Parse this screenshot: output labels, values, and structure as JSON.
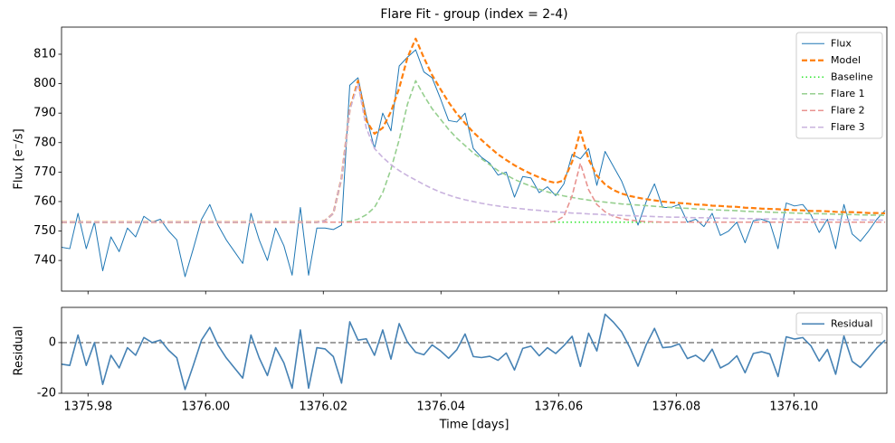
{
  "chart_data": [
    {
      "type": "line",
      "title": "Flare Fit - group (index = 2-4)",
      "y_label": "Flux [e⁻/s]",
      "xlim": [
        1375.9755,
        1376.1158
      ],
      "ylim": [
        729.6,
        819.2
      ],
      "yticks": [
        740,
        750,
        760,
        770,
        780,
        790,
        800,
        810
      ],
      "legend": "upper right",
      "x": [
        1375.9755,
        1375.9769,
        1375.9783,
        1375.9797,
        1375.9811,
        1375.9825,
        1375.9839,
        1375.9853,
        1375.9867,
        1375.9881,
        1375.9895,
        1375.9909,
        1375.9923,
        1375.9937,
        1375.9951,
        1375.9965,
        1375.9979,
        1375.9993,
        1376.0007,
        1376.0021,
        1376.0035,
        1376.0049,
        1376.0063,
        1376.0077,
        1376.0091,
        1376.0105,
        1376.0119,
        1376.0133,
        1376.0147,
        1376.0161,
        1376.0175,
        1376.0189,
        1376.0203,
        1376.0217,
        1376.0231,
        1376.0245,
        1376.0259,
        1376.0273,
        1376.0287,
        1376.0301,
        1376.0315,
        1376.0329,
        1376.0343,
        1376.0357,
        1376.0371,
        1376.0385,
        1376.0399,
        1376.0413,
        1376.0427,
        1376.0441,
        1376.0455,
        1376.0469,
        1376.0483,
        1376.0497,
        1376.0511,
        1376.0525,
        1376.0539,
        1376.0553,
        1376.0567,
        1376.0581,
        1376.0595,
        1376.0609,
        1376.0623,
        1376.0637,
        1376.0651,
        1376.0665,
        1376.0679,
        1376.0693,
        1376.0707,
        1376.0721,
        1376.0735,
        1376.0749,
        1376.0763,
        1376.0777,
        1376.0791,
        1376.0805,
        1376.0819,
        1376.0833,
        1376.0847,
        1376.0861,
        1376.0875,
        1376.0889,
        1376.0903,
        1376.0917,
        1376.0931,
        1376.0945,
        1376.0959,
        1376.0973,
        1376.0987,
        1376.1001,
        1376.1015,
        1376.1029,
        1376.1043,
        1376.1057,
        1376.1071,
        1376.1085,
        1376.1099,
        1376.1113,
        1376.1127,
        1376.1141,
        1376.1155
      ],
      "series": [
        {
          "name": "Flux",
          "color": "#1f77b4",
          "dash": "solid",
          "width": 1,
          "values": [
            744.5,
            744,
            756,
            744,
            753,
            736.5,
            748,
            743,
            751,
            748,
            755,
            753,
            754,
            750,
            747,
            734.5,
            744,
            754,
            759,
            752,
            747,
            743,
            739,
            756,
            747,
            740,
            751,
            745,
            735,
            758,
            735,
            751,
            751,
            750.5,
            752,
            799.5,
            802,
            789,
            778,
            790,
            784,
            806,
            809,
            811.5,
            804,
            802,
            795,
            787.5,
            787,
            790,
            778,
            775,
            773,
            769,
            770,
            761.5,
            768.5,
            768,
            763,
            765,
            762,
            766,
            776,
            774.5,
            778,
            765.5,
            777,
            772,
            767,
            760,
            752,
            760,
            766,
            758,
            758,
            759,
            753,
            754,
            751.5,
            756,
            748.5,
            750,
            753,
            746,
            753.5,
            754,
            753,
            744,
            759.5,
            758.5,
            759,
            755.5,
            749.5,
            754,
            744,
            759,
            749,
            746.5,
            750,
            754,
            757
          ]
        },
        {
          "name": "Model",
          "color": "#ff7f0e",
          "dash": "dashed",
          "width": 2.2,
          "values": [
            753,
            753,
            753,
            753,
            753,
            753,
            753,
            753,
            753,
            753,
            753,
            753,
            753,
            753,
            753,
            753,
            753,
            753,
            753,
            753,
            753,
            753,
            753,
            753,
            753,
            753,
            753,
            753,
            753,
            753,
            753,
            753,
            753.5,
            756,
            768,
            791.3,
            801,
            787.5,
            783,
            785,
            790.5,
            798.5,
            808.8,
            815.3,
            808.8,
            802.9,
            798.2,
            793.7,
            789.8,
            786.6,
            783.5,
            780.9,
            778.4,
            776,
            774.1,
            772.3,
            770.8,
            769.4,
            768.2,
            767,
            766.3,
            767.2,
            773.5,
            783.9,
            774.3,
            768.8,
            765.8,
            763.9,
            762.7,
            761.9,
            761.3,
            760.8,
            760.4,
            760,
            759.7,
            759.5,
            759.3,
            759,
            758.9,
            758.6,
            758.5,
            758.3,
            758.2,
            757.9,
            757.8,
            757.6,
            757.5,
            757.4,
            757.2,
            757.1,
            757,
            756.8,
            756.8,
            756.7,
            756.5,
            756.4,
            756.4,
            756.3,
            756.1,
            756.1,
            756
          ]
        },
        {
          "name": "Baseline",
          "color": "#2ee52e",
          "dash": "dotted",
          "width": 1.6,
          "x": [
            1375.9755,
            1376.1155
          ],
          "values": [
            753,
            753
          ]
        },
        {
          "name": "Flare 1",
          "color": "#96cf8f",
          "dash": "dashed",
          "width": 1.6,
          "values": [
            753,
            753,
            753,
            753,
            753,
            753,
            753,
            753,
            753,
            753,
            753,
            753,
            753,
            753,
            753,
            753,
            753,
            753,
            753,
            753,
            753,
            753,
            753,
            753,
            753,
            753,
            753,
            753,
            753,
            753,
            753,
            753,
            753,
            753,
            753,
            753.3,
            754,
            755.5,
            758,
            763,
            771,
            781,
            793,
            801,
            796,
            791.5,
            788,
            784.5,
            781.5,
            779,
            776.5,
            774.5,
            772.5,
            770.5,
            769,
            767.5,
            766.3,
            765.2,
            764.2,
            763.3,
            762.5,
            761.9,
            761.4,
            760.9,
            760.5,
            760.1,
            759.8,
            759.5,
            759.2,
            759,
            758.8,
            758.6,
            758.4,
            758.2,
            758,
            757.8,
            757.7,
            757.5,
            757.4,
            757.2,
            757.1,
            757,
            756.9,
            756.7,
            756.6,
            756.5,
            756.4,
            756.3,
            756.2,
            756.1,
            756,
            755.9,
            755.9,
            755.8,
            755.7,
            755.6,
            755.6,
            755.5,
            755.4,
            755.4,
            755.3
          ]
        },
        {
          "name": "Flare 2",
          "color": "#e89390",
          "dash": "dashed",
          "width": 1.6,
          "x": [
            1375.9755,
            1376.0581,
            1376.0595,
            1376.0609,
            1376.0623,
            1376.0637,
            1376.0651,
            1376.0665,
            1376.0679,
            1376.0693,
            1376.0707,
            1376.0721,
            1376.0735,
            1376.0749,
            1376.0763,
            1376.0777,
            1376.1155
          ],
          "values": [
            753,
            753,
            753.3,
            755,
            762,
            773,
            764,
            759,
            756.5,
            755,
            754.2,
            753.7,
            753.4,
            753.2,
            753.1,
            753,
            753
          ]
        },
        {
          "name": "Flare 3",
          "color": "#c9b3de",
          "dash": "dashed",
          "width": 1.6,
          "values": [
            753,
            753,
            753,
            753,
            753,
            753,
            753,
            753,
            753,
            753,
            753,
            753,
            753,
            753,
            753,
            753,
            753,
            753,
            753,
            753,
            753,
            753,
            753,
            753,
            753,
            753,
            753,
            753,
            753,
            753,
            753,
            753,
            753.5,
            756,
            768,
            791,
            800,
            785,
            778,
            775,
            772.5,
            770.5,
            768.8,
            767.3,
            765.8,
            764.4,
            763.2,
            762.2,
            761.3,
            760.6,
            760,
            759.4,
            758.9,
            758.5,
            758.1,
            757.8,
            757.5,
            757.2,
            757,
            756.7,
            756.5,
            756.3,
            756.1,
            756,
            755.8,
            755.7,
            755.5,
            755.4,
            755.3,
            755.2,
            755.1,
            755,
            754.9,
            754.8,
            754.7,
            754.7,
            754.6,
            754.5,
            754.5,
            754.4,
            754.4,
            754.3,
            754.3,
            754.2,
            754.2,
            754.1,
            754.1,
            754.1,
            754,
            754,
            754,
            753.9,
            753.9,
            753.9,
            753.8,
            753.8,
            753.8,
            753.8,
            753.7,
            753.7,
            753.7
          ]
        }
      ]
    },
    {
      "type": "line",
      "x_label": "Time [days]",
      "y_label": "Residual",
      "xlim": [
        1375.9755,
        1376.1158
      ],
      "ylim": [
        -20,
        13.9
      ],
      "yticks": [
        -20,
        0
      ],
      "legend": "upper right",
      "xticks": [
        1375.98,
        {
          "value": 1376,
          "label": "1376.00"
        },
        1376.02,
        1376.04,
        1376.06,
        1376.08,
        {
          "value": 1376.1,
          "label": "1376.10"
        }
      ],
      "hlines": [
        {
          "y": 0,
          "color": "#808080"
        }
      ],
      "x": [
        1375.9755,
        1375.9769,
        1375.9783,
        1375.9797,
        1375.9811,
        1375.9825,
        1375.9839,
        1375.9853,
        1375.9867,
        1375.9881,
        1375.9895,
        1375.9909,
        1375.9923,
        1375.9937,
        1375.9951,
        1375.9965,
        1375.9979,
        1375.9993,
        1376.0007,
        1376.0021,
        1376.0035,
        1376.0049,
        1376.0063,
        1376.0077,
        1376.0091,
        1376.0105,
        1376.0119,
        1376.0133,
        1376.0147,
        1376.0161,
        1376.0175,
        1376.0189,
        1376.0203,
        1376.0217,
        1376.0231,
        1376.0245,
        1376.0259,
        1376.0273,
        1376.0287,
        1376.0301,
        1376.0315,
        1376.0329,
        1376.0343,
        1376.0357,
        1376.0371,
        1376.0385,
        1376.0399,
        1376.0413,
        1376.0427,
        1376.0441,
        1376.0455,
        1376.0469,
        1376.0483,
        1376.0497,
        1376.0511,
        1376.0525,
        1376.0539,
        1376.0553,
        1376.0567,
        1376.0581,
        1376.0595,
        1376.0609,
        1376.0623,
        1376.0637,
        1376.0651,
        1376.0665,
        1376.0679,
        1376.0693,
        1376.0707,
        1376.0721,
        1376.0735,
        1376.0749,
        1376.0763,
        1376.0777,
        1376.0791,
        1376.0805,
        1376.0819,
        1376.0833,
        1376.0847,
        1376.0861,
        1376.0875,
        1376.0889,
        1376.0903,
        1376.0917,
        1376.0931,
        1376.0945,
        1376.0959,
        1376.0973,
        1376.0987,
        1376.1001,
        1376.1015,
        1376.1029,
        1376.1043,
        1376.1057,
        1376.1071,
        1376.1085,
        1376.1099,
        1376.1113,
        1376.1127,
        1376.1141,
        1376.1155
      ],
      "series": [
        {
          "name": "Residual",
          "color": "#4682b4",
          "dash": "solid",
          "width": 1.6,
          "values": [
            -8.5,
            -9,
            3,
            -9,
            0,
            -16.5,
            -5,
            -10,
            -2,
            -5,
            2,
            0,
            1,
            -3,
            -6,
            -18.5,
            -9,
            1,
            6,
            -1,
            -6,
            -10,
            -14,
            3,
            -6,
            -13,
            -2,
            -8,
            -18,
            5,
            -18,
            -2,
            -2.5,
            -5.5,
            -16,
            8.2,
            1,
            1.5,
            -5,
            5,
            -6.5,
            7.5,
            0.2,
            -3.8,
            -4.8,
            -0.9,
            -3.2,
            -6.2,
            -2.8,
            3.4,
            -5.5,
            -5.9,
            -5.4,
            -7,
            -4.1,
            -10.8,
            -2.3,
            -1.4,
            -5.2,
            -2,
            -4.3,
            -1.2,
            2.5,
            -9.4,
            3.7,
            -3.3,
            11.2,
            8.1,
            4.3,
            -1.9,
            -9.3,
            -0.8,
            5.6,
            -2,
            -1.7,
            -0.5,
            -6.3,
            -5,
            -7.4,
            -2.6,
            -10,
            -8.3,
            -5.2,
            -11.9,
            -4.3,
            -3.6,
            -4.5,
            -13.4,
            2.3,
            1.4,
            2,
            -1.3,
            -7.3,
            -2.7,
            -12.5,
            2.6,
            -7.4,
            -9.8,
            -6.1,
            -2.1,
            1
          ]
        }
      ]
    }
  ]
}
